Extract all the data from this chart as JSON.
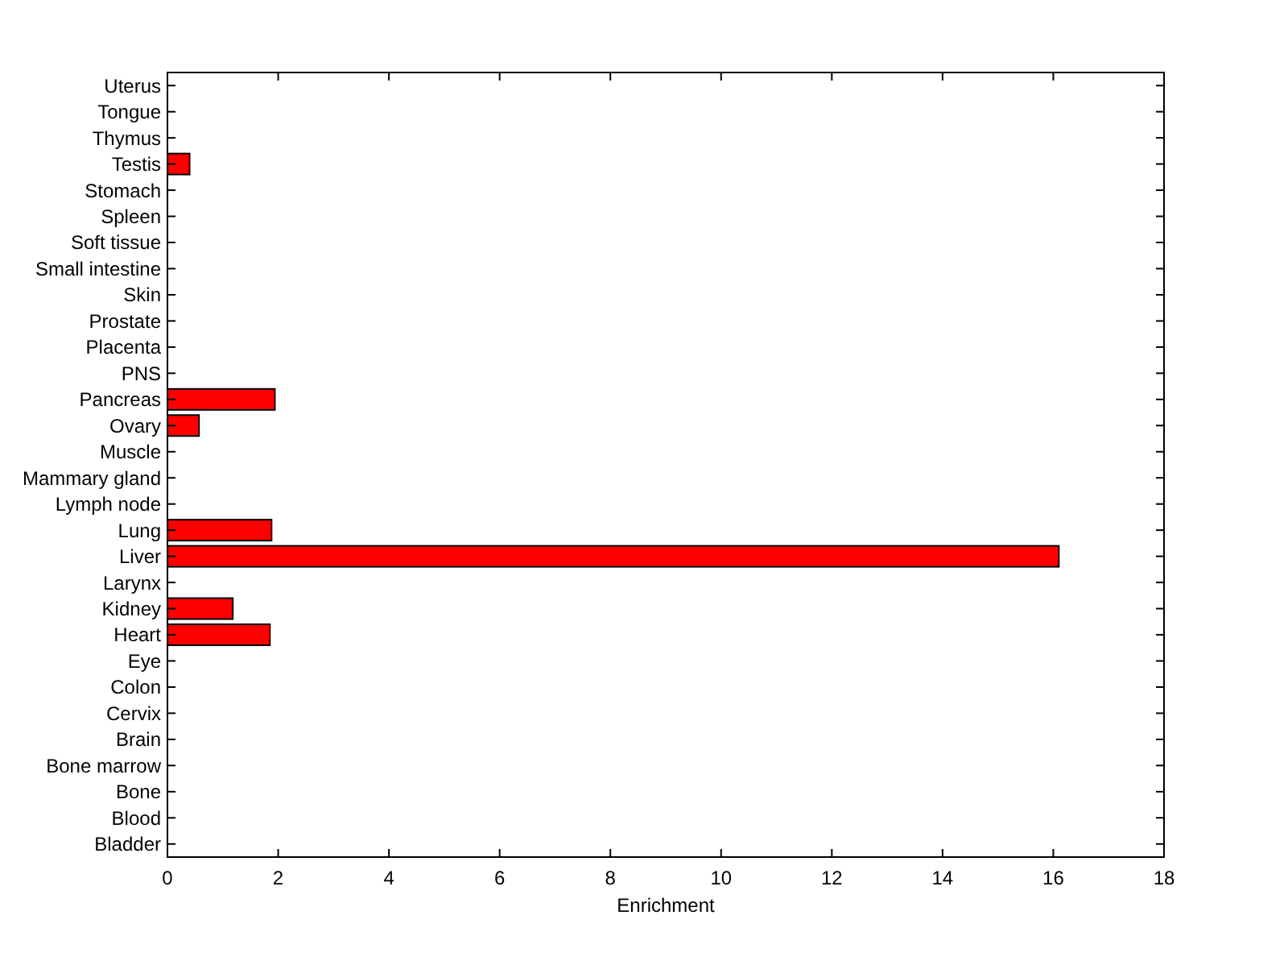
{
  "chart_data": {
    "type": "bar",
    "orientation": "horizontal",
    "xlabel": "Enrichment",
    "categories": [
      "Uterus",
      "Tongue",
      "Thymus",
      "Testis",
      "Stomach",
      "Spleen",
      "Soft tissue",
      "Small intestine",
      "Skin",
      "Prostate",
      "Placenta",
      "PNS",
      "Pancreas",
      "Ovary",
      "Muscle",
      "Mammary gland",
      "Lymph node",
      "Lung",
      "Liver",
      "Larynx",
      "Kidney",
      "Heart",
      "Eye",
      "Colon",
      "Cervix",
      "Brain",
      "Bone marrow",
      "Bone",
      "Blood",
      "Bladder"
    ],
    "values": [
      0,
      0,
      0,
      0.4,
      0,
      0,
      0,
      0,
      0,
      0,
      0,
      0,
      1.94,
      0.57,
      0,
      0,
      0,
      1.88,
      16.1,
      0,
      1.18,
      1.85,
      0,
      0,
      0,
      0,
      0,
      0,
      0,
      0
    ],
    "color": "#ff0000",
    "xlim": [
      0,
      18
    ],
    "xticks": [
      0,
      2,
      4,
      6,
      8,
      10,
      12,
      14,
      16,
      18
    ]
  }
}
